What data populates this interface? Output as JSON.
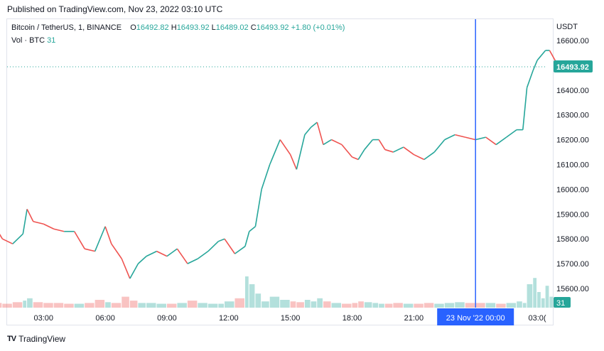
{
  "header": {
    "published": "Published on TradingView.com, Nov 23, 2022 03:10 UTC"
  },
  "legend": {
    "symbol": "Bitcoin / TetherUS, 1, BINANCE",
    "open_label": "O",
    "open": "16492.82",
    "high_label": "H",
    "high": "16493.92",
    "low_label": "L",
    "low": "16489.02",
    "close_label": "C",
    "close": "16493.92",
    "change": "+1.80 (+0.01%)",
    "vol_label": "Vol · BTC",
    "vol_value": "31"
  },
  "footer": {
    "brand": "TradingView",
    "logo": "TV"
  },
  "colors": {
    "up": "#26a69a",
    "down": "#ef5350",
    "crosshair": "#2962ff",
    "axis_text": "#131722"
  },
  "chart_data": {
    "type": "line",
    "title": "",
    "currency": "USDT",
    "y_ticks": [
      "16600.00",
      "16500.00",
      "16400.00",
      "16300.00",
      "16200.00",
      "16100.00",
      "16000.00",
      "15900.00",
      "15800.00",
      "15700.00",
      "15600.00"
    ],
    "ylim": [
      15580,
      16640
    ],
    "x_ticks": [
      "03:00",
      "06:00",
      "09:00",
      "12:00",
      "15:00",
      "18:00",
      "21:00",
      "03:0("
    ],
    "crosshair_label": "23 Nov '22   00:00",
    "crosshair_hour": 24.0,
    "last_price_label": "16493.92",
    "last_price": 16493.92,
    "volume_label": "31",
    "x_hours": [
      0.0,
      0.5,
      1.0,
      1.5,
      2.0,
      2.2,
      2.5,
      3.0,
      3.5,
      4.0,
      4.5,
      5.0,
      5.5,
      6.0,
      6.3,
      6.8,
      7.2,
      7.6,
      8.0,
      8.5,
      9.0,
      9.5,
      10.0,
      10.5,
      11.0,
      11.5,
      11.8,
      12.3,
      12.8,
      13.0,
      13.3,
      13.6,
      14.0,
      14.5,
      15.0,
      15.3,
      15.7,
      16.0,
      16.3,
      16.6,
      17.0,
      17.5,
      18.0,
      18.3,
      18.6,
      19.0,
      19.3,
      19.6,
      20.0,
      20.5,
      21.0,
      21.5,
      22.0,
      22.5,
      23.0,
      23.5,
      24.0,
      24.5,
      25.0,
      25.5,
      26.0,
      26.3,
      26.5,
      26.8,
      27.0,
      27.2,
      27.4,
      27.6,
      27.8,
      28.0
    ],
    "close": [
      15910,
      15870,
      15800,
      15780,
      15820,
      15920,
      15870,
      15860,
      15840,
      15830,
      15830,
      15760,
      15750,
      15850,
      15780,
      15720,
      15640,
      15700,
      15730,
      15750,
      15730,
      15760,
      15700,
      15720,
      15750,
      15790,
      15800,
      15740,
      15770,
      15830,
      15850,
      16000,
      16100,
      16200,
      16140,
      16080,
      16220,
      16250,
      16270,
      16180,
      16200,
      16180,
      16130,
      16120,
      16160,
      16200,
      16200,
      16160,
      16150,
      16170,
      16140,
      16120,
      16150,
      16200,
      16220,
      16210,
      16200,
      16210,
      16180,
      16210,
      16240,
      16240,
      16410,
      16480,
      16520,
      16540,
      16560,
      16560,
      16530,
      16500
    ],
    "volume": [
      8,
      6,
      5,
      7,
      9,
      12,
      7,
      6,
      6,
      5,
      5,
      6,
      10,
      7,
      6,
      14,
      9,
      6,
      6,
      5,
      5,
      6,
      9,
      6,
      5,
      5,
      8,
      12,
      40,
      30,
      18,
      8,
      14,
      10,
      8,
      7,
      10,
      8,
      12,
      8,
      6,
      5,
      6,
      8,
      7,
      6,
      5,
      5,
      6,
      5,
      5,
      6,
      5,
      6,
      7,
      6,
      6,
      6,
      5,
      6,
      8,
      6,
      30,
      38,
      20,
      12,
      28,
      14,
      9,
      4
    ],
    "volume_max_ref": 100
  }
}
